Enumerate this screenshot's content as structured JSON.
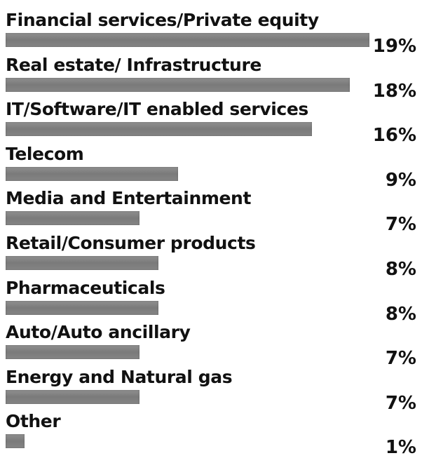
{
  "chart_data": {
    "type": "bar",
    "orientation": "horizontal",
    "categories": [
      "Financial services/Private equity",
      "Real estate/ Infrastructure",
      "IT/Software/IT enabled services",
      "Telecom",
      "Media and Entertainment",
      "Retail/Consumer products",
      "Pharmaceuticals",
      "Auto/Auto ancillary",
      "Energy and Natural gas",
      "Other"
    ],
    "values": [
      19,
      18,
      16,
      9,
      7,
      8,
      8,
      7,
      7,
      1
    ],
    "value_labels": [
      "19%",
      "18%",
      "16%",
      "9%",
      "7%",
      "8%",
      "8%",
      "7%",
      "7%",
      "1%"
    ],
    "unit": "%",
    "bar_color": "#828282"
  }
}
